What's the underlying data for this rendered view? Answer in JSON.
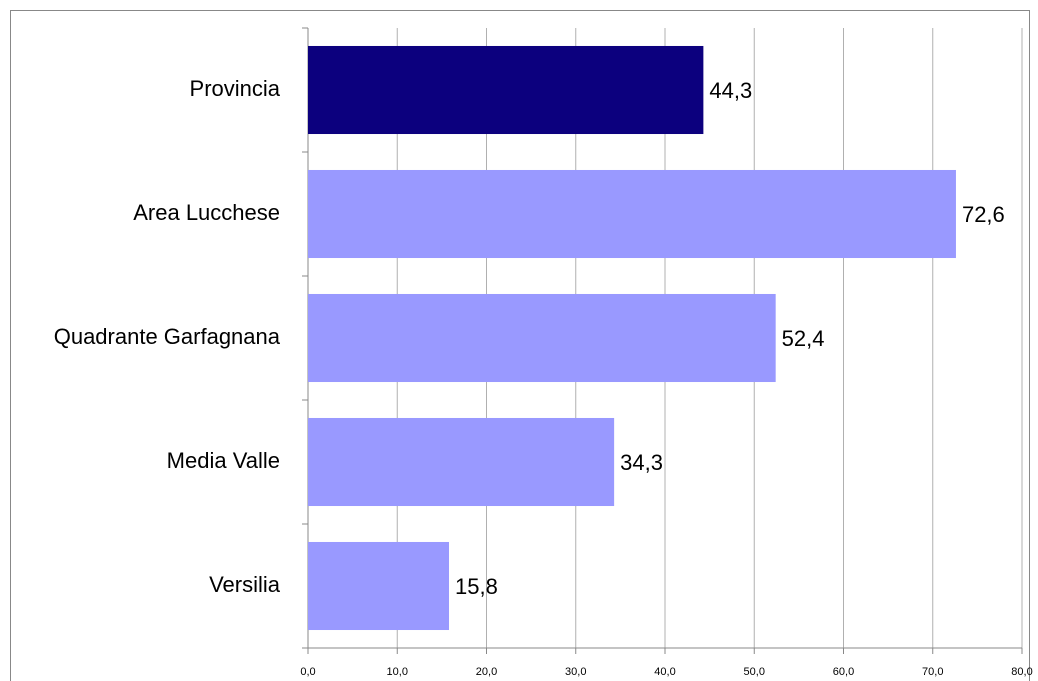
{
  "chart_data": {
    "type": "bar",
    "orientation": "horizontal",
    "categories": [
      "Provincia",
      "Area Lucchese",
      "Quadrante Garfagnana",
      "Media Valle",
      "Versilia"
    ],
    "values": [
      44.3,
      72.6,
      52.4,
      34.3,
      15.8
    ],
    "value_labels": [
      "44,3",
      "72,6",
      "52,4",
      "34,3",
      "15,8"
    ],
    "colors": [
      "#0c007e",
      "#9999ff",
      "#9999ff",
      "#9999ff",
      "#9999ff"
    ],
    "xlim": [
      0,
      80
    ],
    "xticks": [
      {
        "value": 0,
        "label": "0,0"
      },
      {
        "value": 10,
        "label": "10,0"
      },
      {
        "value": 20,
        "label": "20,0"
      },
      {
        "value": 30,
        "label": "30,0"
      },
      {
        "value": 40,
        "label": "40,0"
      },
      {
        "value": 50,
        "label": "50,0"
      },
      {
        "value": 60,
        "label": "60,0"
      },
      {
        "value": 70,
        "label": "70,0"
      },
      {
        "value": 80,
        "label": "80,0"
      }
    ],
    "grid": true
  }
}
